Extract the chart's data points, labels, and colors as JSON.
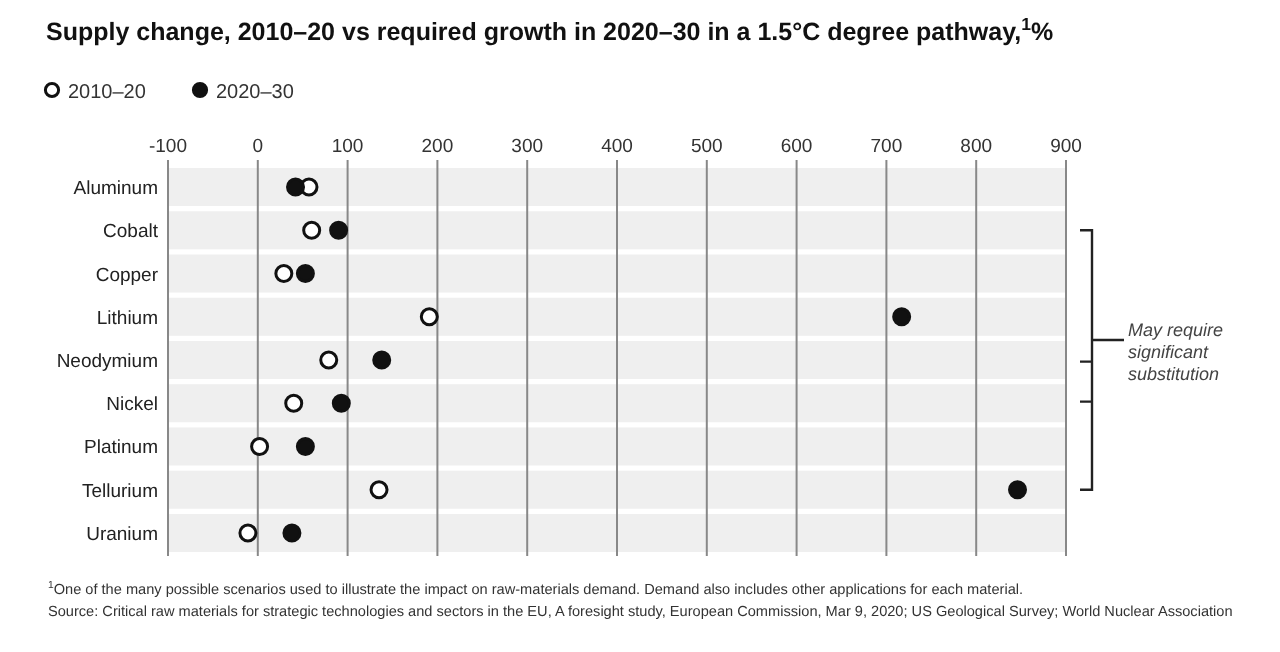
{
  "chart_data": {
    "type": "scatter",
    "orientation": "horizontal",
    "title": "Supply change, 2010–20 vs required growth in 2020–30 in a 1.5°C degree pathway,$^{1}$%",
    "categories": [
      "Aluminum",
      "Cobalt",
      "Copper",
      "Lithium",
      "Neodymium",
      "Nickel",
      "Platinum",
      "Tellurium",
      "Uranium"
    ],
    "series": [
      {
        "name": "2010–20",
        "color": "#ffffff",
        "values": [
          57,
          60,
          29,
          191,
          79,
          40,
          2,
          135,
          -11
        ]
      },
      {
        "name": "2020–30",
        "color": "#111111",
        "values": [
          42,
          90,
          53,
          717,
          138,
          93,
          53,
          846,
          38
        ]
      }
    ],
    "xlim": [
      -100,
      900
    ],
    "xticks": [
      -100,
      0,
      100,
      200,
      300,
      400,
      500,
      600,
      700,
      800,
      900
    ],
    "grid": "x",
    "legend": "top left",
    "marker": "circle",
    "annotations": [
      "May require significant substitution",
      "$^{1}$One of the many possible scenarios used to illustrate the impact on raw-materials demand. Demand also includes other applications for each material.",
      "Source: Critical raw materials for strategic technologies and sectors in the EU, A foresight study, European Commission, Mar 9, 2020; US Geological Survey; World Nuclear Association"
    ]
  }
}
